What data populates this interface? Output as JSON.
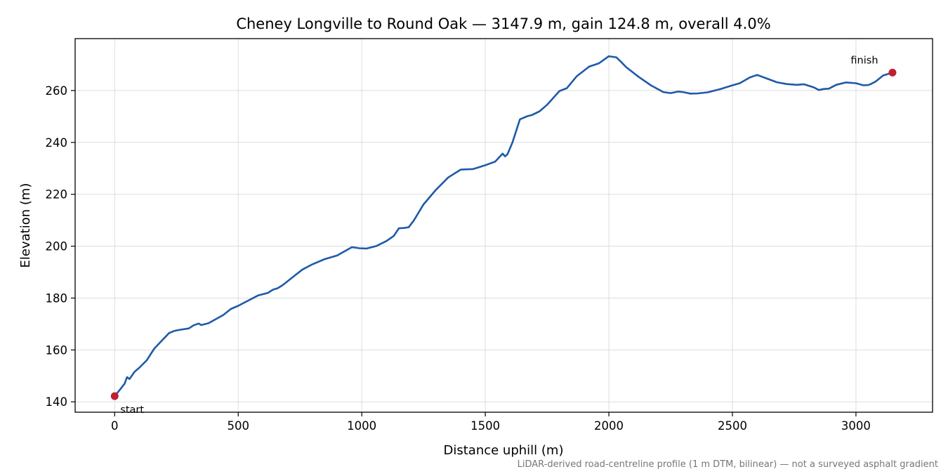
{
  "chart_data": {
    "type": "line",
    "title": "Cheney Longville to Round Oak — 3147.9 m, gain 124.8 m, overall 4.0%",
    "xlabel": "Distance uphill (m)",
    "ylabel": "Elevation (m)",
    "footnote": "LiDAR-derived road-centreline profile (1 m DTM, bilinear) — not a surveyed asphalt gradient",
    "xlim": [
      -160,
      3310
    ],
    "ylim": [
      136,
      280
    ],
    "xticks": [
      0,
      500,
      1000,
      1500,
      2000,
      2500,
      3000
    ],
    "yticks": [
      140,
      160,
      180,
      200,
      220,
      240,
      260
    ],
    "grid": true,
    "line_color": "#1f5aa8",
    "marker_color": "#c0202f",
    "series": [
      {
        "x": [
          0,
          20,
          40,
          50,
          60,
          80,
          100,
          130,
          160,
          180,
          220,
          240,
          260,
          300,
          320,
          340,
          350,
          380,
          440,
          470,
          500,
          540,
          580,
          620,
          640,
          660,
          680,
          720,
          760,
          800,
          850,
          900,
          960,
          990,
          1020,
          1060,
          1100,
          1130,
          1150,
          1170,
          1190,
          1210,
          1250,
          1300,
          1350,
          1400,
          1420,
          1450,
          1470,
          1500,
          1540,
          1570,
          1580,
          1590,
          1610,
          1640,
          1670,
          1690,
          1720,
          1750,
          1800,
          1830,
          1870,
          1920,
          1960,
          2000,
          2030,
          2050,
          2070,
          2120,
          2170,
          2220,
          2250,
          2280,
          2300,
          2330,
          2360,
          2400,
          2450,
          2500,
          2530,
          2570,
          2600,
          2640,
          2680,
          2720,
          2760,
          2790,
          2830,
          2850,
          2870,
          2890,
          2920,
          2960,
          3000,
          3030,
          3050,
          3060,
          3080,
          3110,
          3147.9
        ],
        "y": [
          142.2,
          144.5,
          147,
          149.5,
          148.8,
          151.5,
          153.2,
          156,
          160.5,
          162.5,
          166.5,
          167.3,
          167.7,
          168.3,
          169.5,
          170.2,
          169.6,
          170.3,
          173.5,
          175.8,
          177,
          179,
          181,
          182,
          183.2,
          183.8,
          185,
          188,
          191,
          193,
          195,
          196.4,
          199.6,
          199.2,
          199.1,
          200.1,
          202,
          204,
          206.9,
          207,
          207.3,
          209.8,
          216.1,
          221.7,
          226.5,
          229.5,
          229.6,
          229.7,
          230.3,
          231.2,
          232.6,
          235.7,
          234.6,
          235.5,
          240,
          248.9,
          250.1,
          250.6,
          252,
          254.5,
          259.8,
          260.9,
          265.5,
          269.2,
          270.5,
          273.2,
          272.8,
          271,
          269,
          265.3,
          262,
          259.4,
          259,
          259.6,
          259.4,
          258.8,
          258.9,
          259.3,
          260.5,
          262,
          262.8,
          265,
          266,
          264.6,
          263.2,
          262.5,
          262.2,
          262.4,
          261.2,
          260.2,
          260.6,
          260.7,
          262.2,
          263.1,
          262.8,
          262,
          262.1,
          262.5,
          263.5,
          265.8,
          266.9
        ]
      }
    ],
    "annotations": [
      {
        "text": "start",
        "x": 0,
        "y": 142.2
      },
      {
        "text": "finish",
        "x": 3147.9,
        "y": 266.9
      }
    ]
  }
}
